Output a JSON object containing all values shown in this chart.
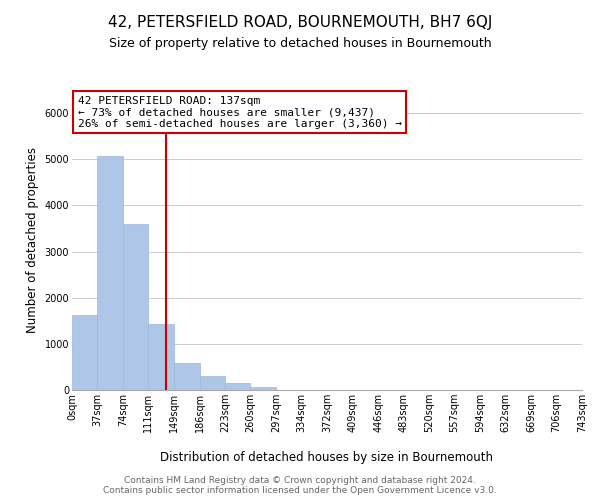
{
  "title": "42, PETERSFIELD ROAD, BOURNEMOUTH, BH7 6QJ",
  "subtitle": "Size of property relative to detached houses in Bournemouth",
  "xlabel": "Distribution of detached houses by size in Bournemouth",
  "ylabel": "Number of detached properties",
  "bar_edges": [
    0,
    37,
    74,
    111,
    149,
    186,
    223,
    260,
    297,
    334,
    372,
    409,
    446,
    483,
    520,
    557,
    594,
    632,
    669,
    706,
    743
  ],
  "bar_heights": [
    1630,
    5080,
    3600,
    1430,
    580,
    300,
    145,
    60,
    0,
    0,
    0,
    0,
    0,
    0,
    0,
    0,
    0,
    0,
    0,
    0
  ],
  "bar_color": "#aec6e8",
  "bar_edgecolor": "#9bb8d8",
  "vline_x": 137,
  "vline_color": "#cc0000",
  "ylim": [
    0,
    6500
  ],
  "annotation_line1": "42 PETERSFIELD ROAD: 137sqm",
  "annotation_line2": "← 73% of detached houses are smaller (9,437)",
  "annotation_line3": "26% of semi-detached houses are larger (3,360) →",
  "annotation_box_edgecolor": "#cc0000",
  "annotation_box_facecolor": "#ffffff",
  "tick_labels": [
    "0sqm",
    "37sqm",
    "74sqm",
    "111sqm",
    "149sqm",
    "186sqm",
    "223sqm",
    "260sqm",
    "297sqm",
    "334sqm",
    "372sqm",
    "409sqm",
    "446sqm",
    "483sqm",
    "520sqm",
    "557sqm",
    "594sqm",
    "632sqm",
    "669sqm",
    "706sqm",
    "743sqm"
  ],
  "footer_line1": "Contains HM Land Registry data © Crown copyright and database right 2024.",
  "footer_line2": "Contains public sector information licensed under the Open Government Licence v3.0.",
  "grid_color": "#cccccc",
  "background_color": "#ffffff",
  "title_fontsize": 11,
  "subtitle_fontsize": 9,
  "axis_label_fontsize": 8.5,
  "tick_fontsize": 7,
  "annotation_fontsize": 8,
  "footer_fontsize": 6.5
}
